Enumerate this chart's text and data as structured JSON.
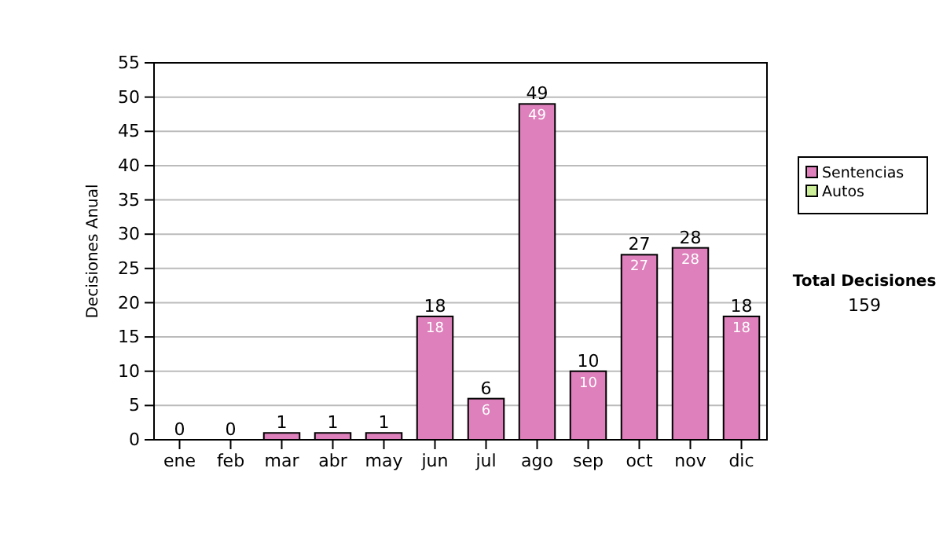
{
  "chart_data": {
    "type": "bar",
    "stacked": true,
    "ylabel": "Decisiones Anual",
    "categories": [
      "ene",
      "feb",
      "mar",
      "abr",
      "may",
      "jun",
      "jul",
      "ago",
      "sep",
      "oct",
      "nov",
      "dic"
    ],
    "series": [
      {
        "name": "Sentencias",
        "color": "#dd80bb",
        "values": [
          0,
          0,
          1,
          1,
          1,
          18,
          6,
          49,
          10,
          27,
          28,
          18
        ],
        "value_labels": [
          null,
          null,
          null,
          null,
          null,
          "18",
          "6",
          "49",
          "10",
          "27",
          "28",
          "18"
        ]
      },
      {
        "name": "Autos",
        "color": "#ccee99",
        "values": [
          0,
          0,
          0,
          0,
          0,
          0,
          0,
          0,
          0,
          0,
          0,
          0
        ]
      }
    ],
    "totals": [
      "0",
      "0",
      "1",
      "1",
      "1",
      "18",
      "6",
      "49",
      "10",
      "27",
      "28",
      "18"
    ],
    "ylim": [
      0,
      55
    ],
    "yticks": [
      0,
      5,
      10,
      15,
      20,
      25,
      30,
      35,
      40,
      45,
      50,
      55
    ],
    "grid": "y",
    "legend": "right",
    "annotations": [
      "Total Decisiones",
      "159"
    ]
  }
}
